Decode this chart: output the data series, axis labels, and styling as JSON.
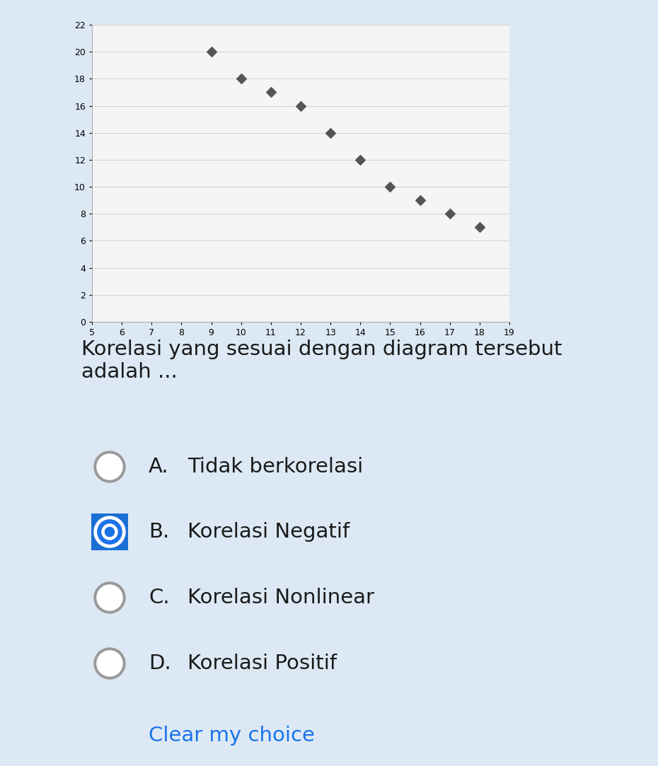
{
  "scatter_x": [
    9,
    10,
    11,
    12,
    13,
    14,
    15,
    16,
    17,
    18
  ],
  "scatter_y": [
    20,
    18,
    17,
    16,
    14,
    12,
    10,
    9,
    8,
    7
  ],
  "xlim": [
    5,
    19
  ],
  "ylim": [
    0,
    22
  ],
  "xticks": [
    5,
    6,
    7,
    8,
    9,
    10,
    11,
    12,
    13,
    14,
    15,
    16,
    17,
    18,
    19
  ],
  "yticks": [
    0,
    2,
    4,
    6,
    8,
    10,
    12,
    14,
    16,
    18,
    20,
    22
  ],
  "marker_color": "#555555",
  "marker_style": "D",
  "marker_size": 7,
  "bg_color": "#dce9f5",
  "chart_bg": "#f5f5f5",
  "chart_border_color": "#aaaaaa",
  "question_text": "Korelasi yang sesuai dengan diagram tersebut\nadalah ...",
  "options": [
    {
      "label": "A.",
      "text": "Tidak berkorelasi",
      "selected": false
    },
    {
      "label": "B.",
      "text": "Korelasi Negatif",
      "selected": true
    },
    {
      "label": "C.",
      "text": "Korelasi Nonlinear",
      "selected": false
    },
    {
      "label": "D.",
      "text": "Korelasi Positif",
      "selected": false
    }
  ],
  "clear_text": "Clear my choice",
  "clear_color": "#1a73e8",
  "question_fontsize": 21,
  "option_fontsize": 21,
  "radio_selected_fill": "#1a73e8",
  "radio_selected_border": "#1a6fd4",
  "radio_unselected_fill": "#ffffff",
  "radio_unselected_border": "#999999"
}
